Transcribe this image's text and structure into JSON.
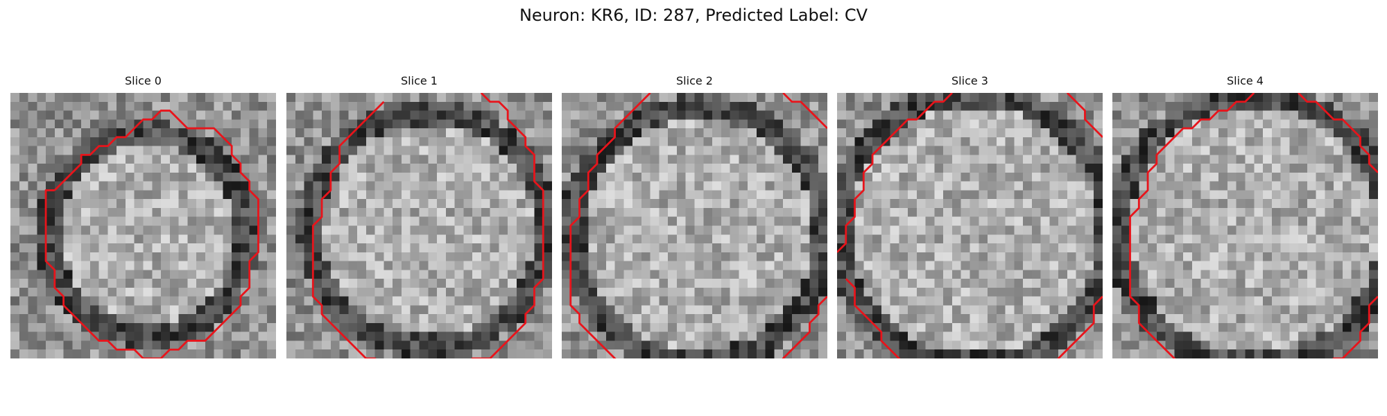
{
  "figure": {
    "title": "Neuron: KR6, ID: 287, Predicted Label: CV"
  },
  "panels": [
    {
      "title": "Slice 0",
      "contour_segments": [
        [
          [
            4.5,
            10.5
          ],
          [
            6.5,
            8.5
          ],
          [
            7.5,
            7.5
          ],
          [
            7.5,
            6.5
          ],
          [
            8.5,
            6.5
          ],
          [
            9.5,
            5.5
          ],
          [
            10.5,
            5.5
          ],
          [
            11.5,
            4.5
          ],
          [
            12.5,
            4.5
          ],
          [
            13.5,
            3.5
          ],
          [
            14.5,
            2.5
          ],
          [
            15.5,
            2.5
          ],
          [
            16.5,
            1.5
          ],
          [
            17.5,
            1.5
          ],
          [
            18.5,
            2.5
          ],
          [
            19.5,
            3.5
          ],
          [
            22.5,
            3.5
          ],
          [
            23.5,
            4.5
          ],
          [
            24.5,
            5.5
          ],
          [
            24.5,
            6.5
          ],
          [
            25.5,
            7.5
          ],
          [
            25.5,
            8.5
          ],
          [
            26.5,
            9.5
          ],
          [
            26.5,
            10.5
          ],
          [
            27.5,
            11.5
          ],
          [
            27.5,
            17.5
          ],
          [
            26.5,
            18.5
          ],
          [
            26.5,
            21.5
          ],
          [
            25.5,
            22.5
          ],
          [
            25.5,
            23.5
          ],
          [
            24.5,
            24.5
          ],
          [
            23.5,
            25.5
          ],
          [
            22.5,
            26.5
          ],
          [
            21.5,
            27.5
          ],
          [
            19.5,
            27.5
          ],
          [
            18.5,
            28.5
          ],
          [
            17.5,
            28.5
          ],
          [
            16.5,
            29.5
          ],
          [
            14.5,
            29.5
          ],
          [
            13.5,
            28.5
          ],
          [
            11.5,
            28.5
          ],
          [
            10.5,
            27.5
          ],
          [
            9.5,
            27.5
          ],
          [
            8.5,
            26.5
          ],
          [
            7.5,
            25.5
          ],
          [
            6.5,
            24.5
          ],
          [
            5.5,
            23.5
          ],
          [
            5.5,
            22.5
          ],
          [
            4.5,
            21.5
          ],
          [
            4.5,
            19.5
          ],
          [
            3.5,
            18.5
          ],
          [
            3.5,
            10.5
          ],
          [
            4.5,
            10.5
          ]
        ]
      ]
    },
    {
      "title": "Slice 1",
      "contour_segments": [
        [
          [
            10.5,
            0.5
          ],
          [
            9.5,
            1.5
          ],
          [
            8.5,
            2.5
          ],
          [
            7.5,
            3.5
          ],
          [
            6.5,
            4.5
          ],
          [
            5.5,
            5.5
          ],
          [
            5.5,
            7.5
          ],
          [
            4.5,
            8.5
          ],
          [
            4.5,
            10.5
          ],
          [
            3.5,
            11.5
          ],
          [
            3.5,
            13.5
          ],
          [
            2.5,
            14.5
          ],
          [
            2.5,
            22.5
          ],
          [
            3.5,
            23.5
          ],
          [
            3.5,
            24.5
          ],
          [
            4.5,
            25.5
          ],
          [
            5.5,
            26.5
          ],
          [
            6.5,
            27.5
          ],
          [
            7.5,
            28.5
          ],
          [
            8.5,
            29.5
          ],
          [
            9.5,
            29.5
          ],
          [
            10.5,
            30.5
          ],
          [
            19.5,
            30.5
          ],
          [
            20.5,
            29.5
          ],
          [
            22.5,
            29.5
          ],
          [
            23.5,
            28.5
          ],
          [
            24.5,
            27.5
          ],
          [
            25.5,
            26.5
          ],
          [
            26.5,
            25.5
          ],
          [
            26.5,
            24.5
          ],
          [
            27.5,
            23.5
          ],
          [
            27.5,
            21.5
          ],
          [
            28.5,
            20.5
          ],
          [
            28.5,
            10.5
          ],
          [
            27.5,
            9.5
          ],
          [
            27.5,
            6.5
          ],
          [
            26.5,
            5.5
          ],
          [
            26.5,
            4.5
          ],
          [
            25.5,
            3.5
          ],
          [
            24.5,
            2.5
          ],
          [
            24.5,
            1.5
          ],
          [
            23.5,
            0.5
          ],
          [
            23.5,
            0.5
          ],
          [
            22.5,
            0.5
          ],
          [
            21.5,
            -0.5
          ]
        ]
      ]
    },
    {
      "title": "Slice 2",
      "contour_segments": [
        [
          [
            9.5,
            -0.5
          ],
          [
            8.5,
            0.5
          ],
          [
            7.5,
            1.5
          ],
          [
            6.5,
            2.5
          ],
          [
            5.5,
            3.5
          ],
          [
            5.5,
            4.5
          ],
          [
            4.5,
            5.5
          ],
          [
            3.5,
            6.5
          ],
          [
            3.5,
            7.5
          ],
          [
            2.5,
            8.5
          ],
          [
            2.5,
            10.5
          ],
          [
            1.5,
            11.5
          ],
          [
            1.5,
            12.5
          ],
          [
            1.5,
            13.5
          ],
          [
            0.5,
            14.5
          ],
          [
            0.5,
            23.5
          ],
          [
            1.5,
            24.5
          ],
          [
            1.5,
            25.5
          ],
          [
            2.5,
            26.5
          ],
          [
            3.5,
            27.5
          ],
          [
            4.5,
            28.5
          ],
          [
            5.5,
            29.5
          ],
          [
            6.5,
            30.5
          ],
          [
            6.5,
            31.5
          ],
          [
            7.5,
            31.5
          ],
          [
            8.5,
            32.5
          ]
        ],
        [
          [
            24.5,
            -0.5
          ],
          [
            25.5,
            0.5
          ],
          [
            26.5,
            0.5
          ],
          [
            27.5,
            1.5
          ],
          [
            28.5,
            2.5
          ],
          [
            29.5,
            3.5
          ]
        ],
        [
          [
            29.5,
            22.5
          ],
          [
            28.5,
            23.5
          ],
          [
            28.5,
            24.5
          ],
          [
            27.5,
            25.5
          ],
          [
            27.5,
            26.5
          ],
          [
            26.5,
            27.5
          ],
          [
            25.5,
            28.5
          ],
          [
            24.5,
            29.5
          ],
          [
            24.5,
            30.5
          ],
          [
            24.5,
            31.5
          ]
        ]
      ]
    },
    {
      "title": "Slice 3",
      "contour_segments": [
        [
          [
            12.5,
            -0.5
          ],
          [
            11.5,
            0.5
          ],
          [
            10.5,
            0.5
          ],
          [
            9.5,
            1.5
          ],
          [
            8.5,
            2.5
          ],
          [
            7.5,
            2.5
          ],
          [
            6.5,
            3.5
          ],
          [
            5.5,
            4.5
          ],
          [
            4.5,
            5.5
          ],
          [
            3.5,
            6.5
          ],
          [
            3.5,
            7.5
          ],
          [
            2.5,
            8.5
          ],
          [
            2.5,
            10.5
          ],
          [
            1.5,
            11.5
          ],
          [
            1.5,
            13.5
          ],
          [
            0.5,
            14.5
          ],
          [
            0.5,
            16.5
          ],
          [
            -0.5,
            17.5
          ]
        ],
        [
          [
            0.5,
            20.5
          ],
          [
            1.5,
            21.5
          ],
          [
            1.5,
            23.5
          ],
          [
            2.5,
            24.5
          ],
          [
            3.5,
            25.5
          ],
          [
            4.5,
            26.5
          ],
          [
            4.5,
            27.5
          ],
          [
            5.5,
            28.5
          ],
          [
            6.5,
            29.5
          ],
          [
            7.5,
            30.5
          ]
        ],
        [
          [
            25.5,
            -0.5
          ],
          [
            26.5,
            0.5
          ],
          [
            27.5,
            1.5
          ],
          [
            27.5,
            2.5
          ],
          [
            28.5,
            3.5
          ],
          [
            29.5,
            4.5
          ]
        ],
        [
          [
            29.5,
            22.5
          ],
          [
            28.5,
            23.5
          ],
          [
            28.5,
            25.5
          ],
          [
            27.5,
            26.5
          ],
          [
            26.5,
            27.5
          ],
          [
            25.5,
            28.5
          ],
          [
            24.5,
            29.5
          ],
          [
            23.5,
            30.5
          ]
        ]
      ]
    },
    {
      "title": "Slice 4",
      "contour_segments": [
        [
          [
            15.5,
            -0.5
          ],
          [
            14.5,
            0.5
          ],
          [
            13.5,
            0.5
          ],
          [
            12.5,
            1.5
          ],
          [
            11.5,
            1.5
          ],
          [
            10.5,
            2.5
          ],
          [
            9.5,
            2.5
          ],
          [
            8.5,
            3.5
          ],
          [
            7.5,
            3.5
          ],
          [
            6.5,
            4.5
          ],
          [
            5.5,
            5.5
          ],
          [
            4.5,
            6.5
          ],
          [
            4.5,
            7.5
          ],
          [
            3.5,
            8.5
          ],
          [
            3.5,
            10.5
          ],
          [
            2.5,
            11.5
          ],
          [
            2.5,
            12.5
          ],
          [
            1.5,
            13.5
          ],
          [
            1.5,
            22.5
          ],
          [
            2.5,
            23.5
          ],
          [
            2.5,
            25.5
          ],
          [
            3.5,
            26.5
          ],
          [
            4.5,
            27.5
          ],
          [
            5.5,
            28.5
          ],
          [
            6.5,
            29.5
          ],
          [
            7.5,
            30.5
          ]
        ],
        [
          [
            20.5,
            -0.5
          ],
          [
            21.5,
            0.5
          ],
          [
            22.5,
            0.5
          ],
          [
            23.5,
            1.5
          ],
          [
            24.5,
            2.5
          ],
          [
            25.5,
            2.5
          ],
          [
            26.5,
            3.5
          ],
          [
            27.5,
            4.5
          ],
          [
            27.5,
            5.5
          ],
          [
            28.5,
            6.5
          ],
          [
            28.5,
            7.5
          ],
          [
            29.5,
            8.5
          ]
        ],
        [
          [
            29.5,
            22.5
          ],
          [
            28.5,
            23.5
          ],
          [
            28.5,
            25.5
          ],
          [
            27.5,
            26.5
          ],
          [
            27.5,
            27.5
          ],
          [
            26.5,
            28.5
          ],
          [
            25.5,
            29.5
          ],
          [
            24.5,
            29.5
          ],
          [
            23.5,
            30.5
          ]
        ]
      ]
    }
  ],
  "style": {
    "contour_color": "#e8141b",
    "cmap": "gray"
  }
}
